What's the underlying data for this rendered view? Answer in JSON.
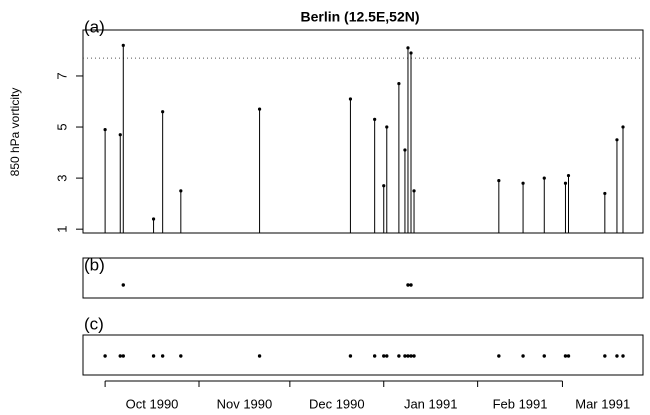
{
  "chart_data": {
    "type": "lollipop",
    "title": "Berlin (12.5E,52N)",
    "ylabel": "850 hPa vorticity",
    "panel_label": "(a)",
    "x": [
      0,
      5,
      6,
      16,
      19,
      25,
      51,
      81,
      89,
      92,
      93,
      97,
      99,
      100,
      101,
      102,
      130,
      138,
      145,
      152,
      153,
      165,
      169,
      171
    ],
    "values": [
      4.9,
      4.7,
      8.2,
      1.4,
      5.6,
      2.5,
      5.7,
      6.1,
      5.3,
      2.7,
      5.0,
      6.7,
      4.1,
      8.1,
      7.9,
      2.5,
      2.9,
      2.8,
      3.0,
      2.8,
      3.1,
      2.4,
      4.5,
      5.0
    ],
    "threshold": 7.7,
    "ylim": [
      0.85,
      8.8
    ],
    "yticks": [
      1,
      3,
      5,
      7
    ],
    "xlim": [
      -7.3,
      177.6
    ],
    "xticks": [
      {
        "value": 0,
        "label": "Oct 1990"
      },
      {
        "value": 31,
        "label": "Nov 1990"
      },
      {
        "value": 61,
        "label": "Dec 1990"
      },
      {
        "value": 92,
        "label": "Jan 1991"
      },
      {
        "value": 123,
        "label": "Feb 1991"
      },
      {
        "value": 151,
        "label": "Mar 1991"
      }
    ],
    "panel_b": {
      "label": "(b)",
      "x": [
        6,
        100,
        101
      ]
    },
    "panel_c": {
      "label": "(c)",
      "x": [
        0,
        5,
        6,
        16,
        19,
        25,
        51,
        81,
        89,
        92,
        93,
        97,
        99,
        100,
        101,
        102,
        130,
        138,
        145,
        152,
        153,
        165,
        169,
        171
      ]
    }
  }
}
